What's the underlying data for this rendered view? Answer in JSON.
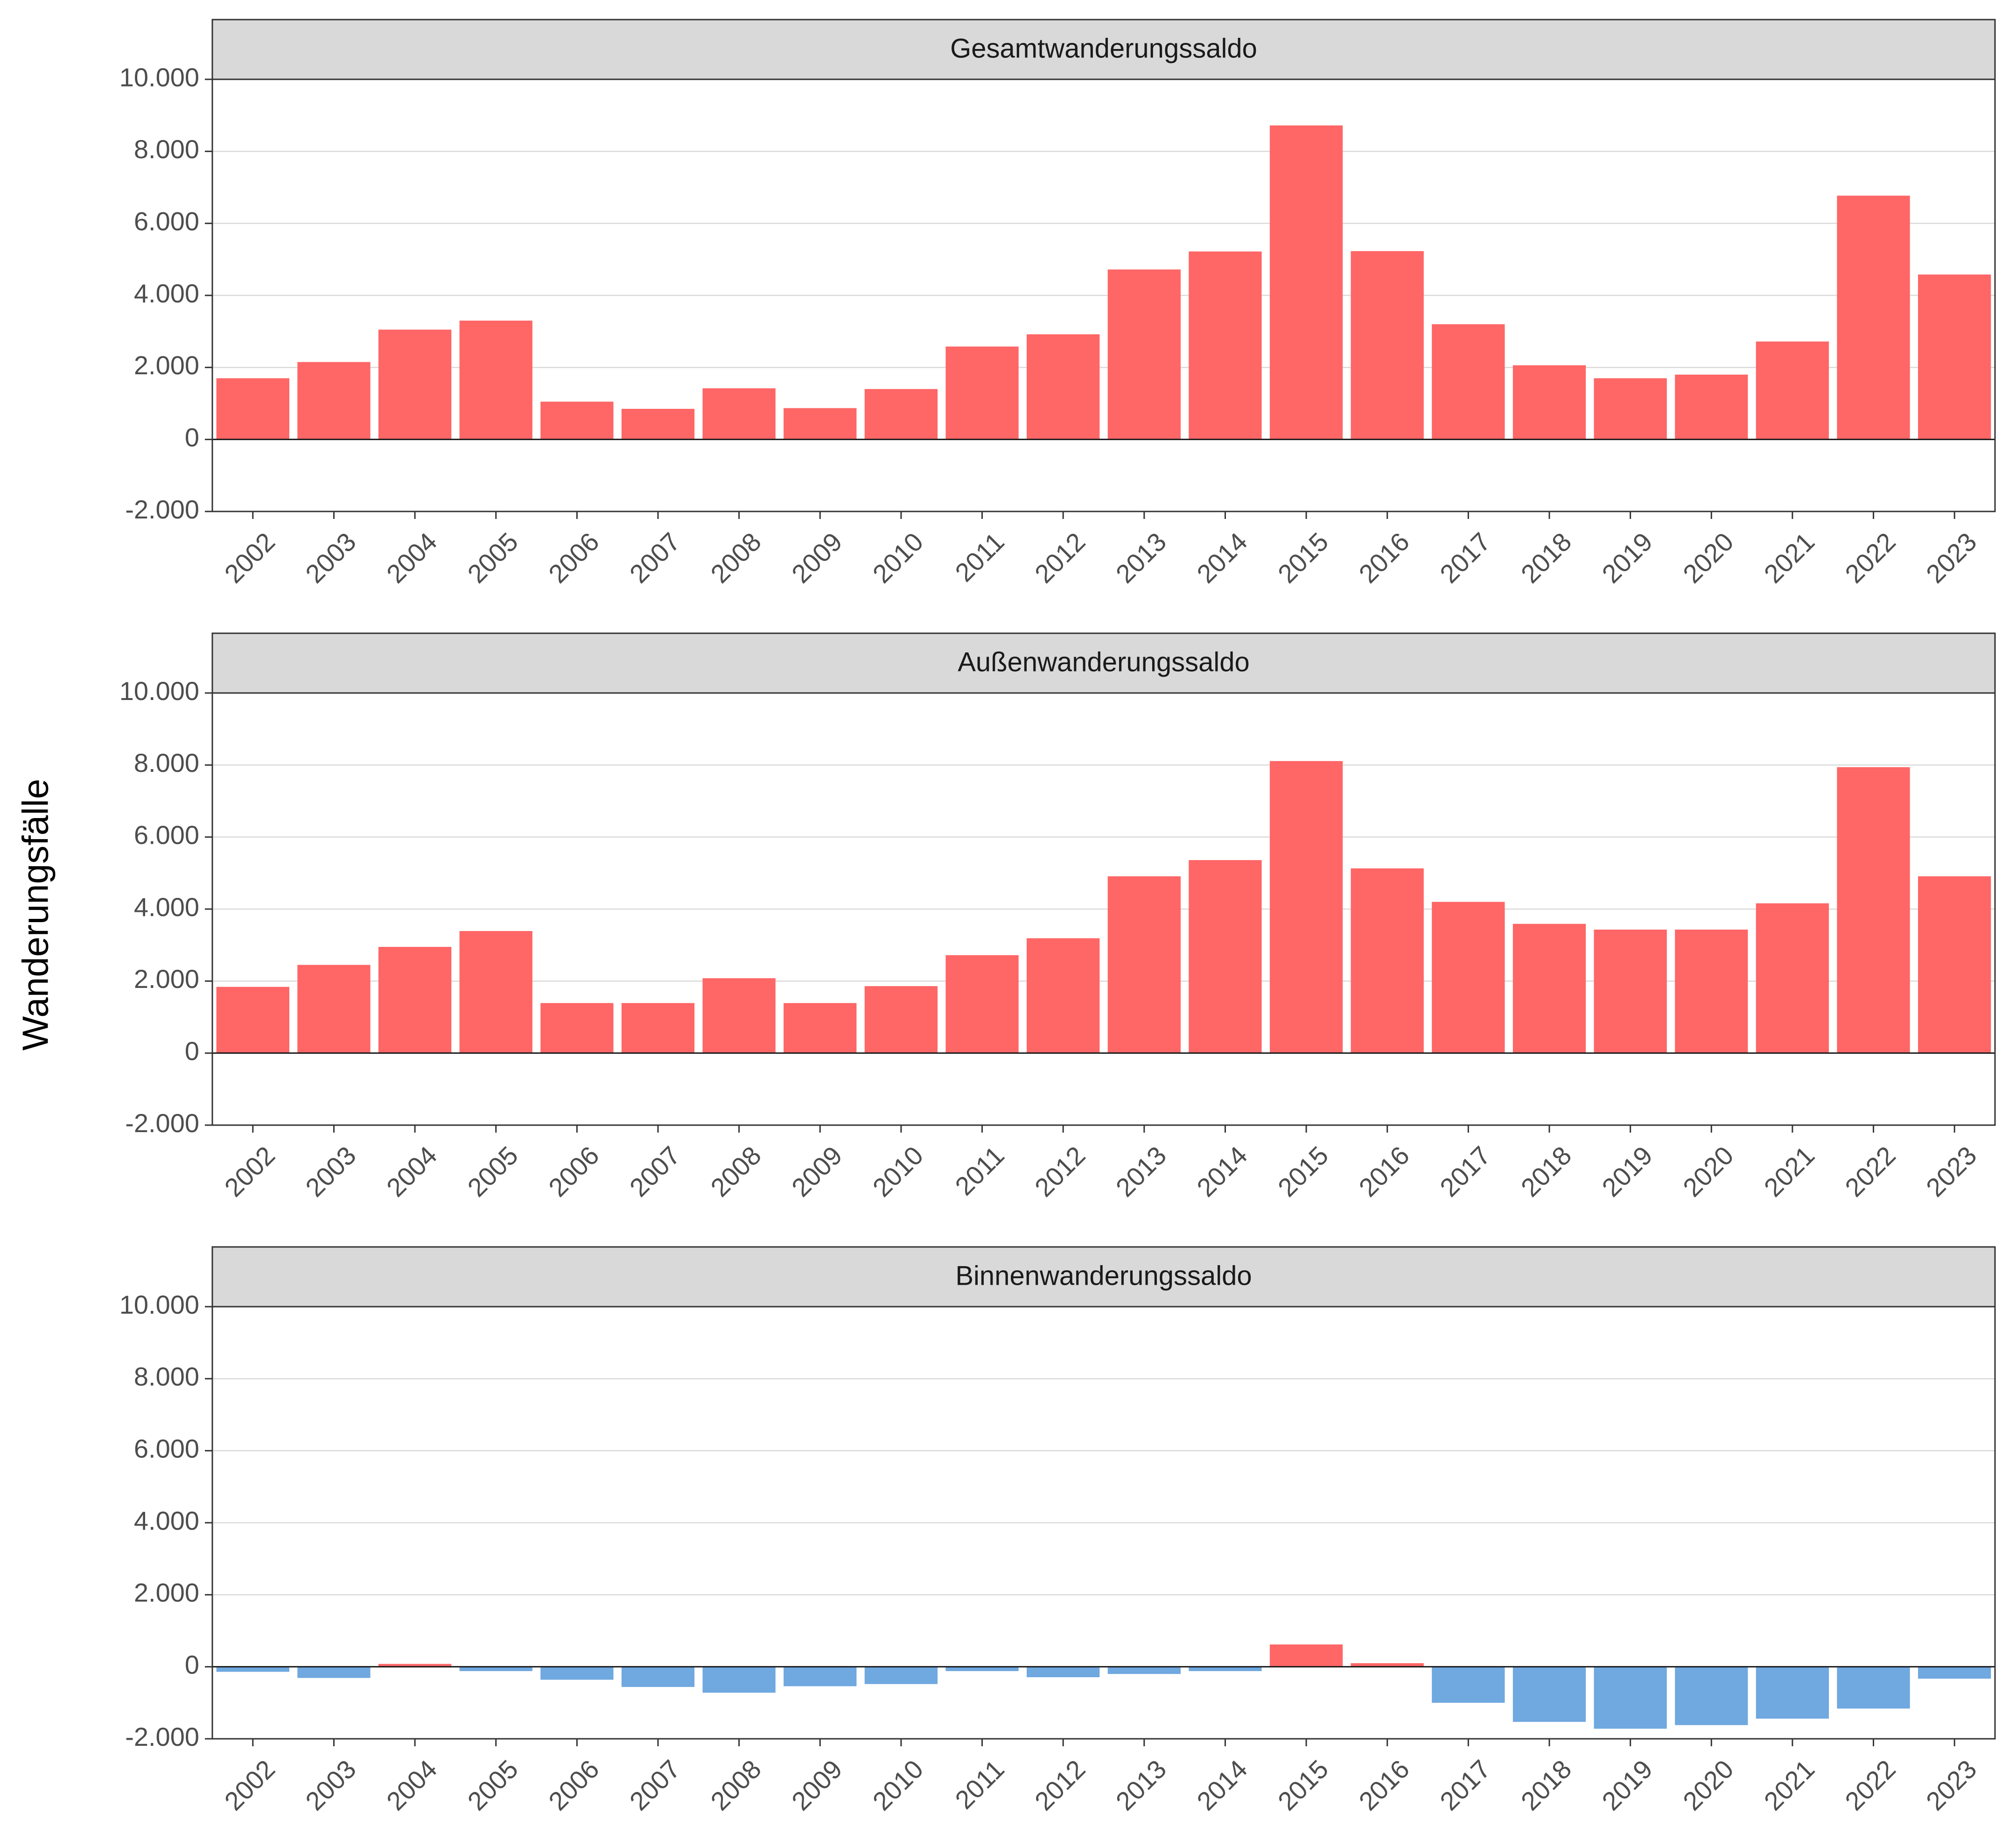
{
  "chart_data": {
    "type": "bar",
    "ylabel": "Wanderungsfälle",
    "ylim": [
      -2000,
      10000
    ],
    "yticks": [
      -2000,
      0,
      2000,
      4000,
      6000,
      8000,
      10000
    ],
    "ytick_labels": [
      "-2.000",
      "0",
      "2.000",
      "4.000",
      "6.000",
      "8.000",
      "10.000"
    ],
    "categories": [
      "2002",
      "2003",
      "2004",
      "2005",
      "2006",
      "2007",
      "2008",
      "2009",
      "2010",
      "2011",
      "2012",
      "2013",
      "2014",
      "2015",
      "2016",
      "2017",
      "2018",
      "2019",
      "2020",
      "2021",
      "2022",
      "2023"
    ],
    "colors": {
      "positive": "#ff6666",
      "negative": "#70a8e0",
      "strip": "#d9d9d9"
    },
    "panels": [
      {
        "title": "Gesamtwanderungssaldo",
        "values": [
          1700,
          2150,
          3050,
          3300,
          1050,
          850,
          1420,
          870,
          1400,
          2580,
          2920,
          4720,
          5220,
          8720,
          5230,
          3200,
          2060,
          1700,
          1800,
          2720,
          6770,
          4580
        ]
      },
      {
        "title": "Außenwanderungssaldo",
        "values": [
          1840,
          2450,
          2950,
          3390,
          1390,
          1390,
          2080,
          1390,
          1860,
          2720,
          3190,
          4910,
          5360,
          8110,
          5130,
          4200,
          3590,
          3430,
          3430,
          4160,
          7940,
          4910
        ]
      },
      {
        "title": "Binnenwanderungssaldo",
        "values": [
          -140,
          -310,
          80,
          -120,
          -360,
          -560,
          -720,
          -540,
          -480,
          -120,
          -290,
          -200,
          -120,
          620,
          100,
          -1000,
          -1530,
          -1720,
          -1620,
          -1440,
          -1160,
          -330
        ]
      }
    ]
  }
}
